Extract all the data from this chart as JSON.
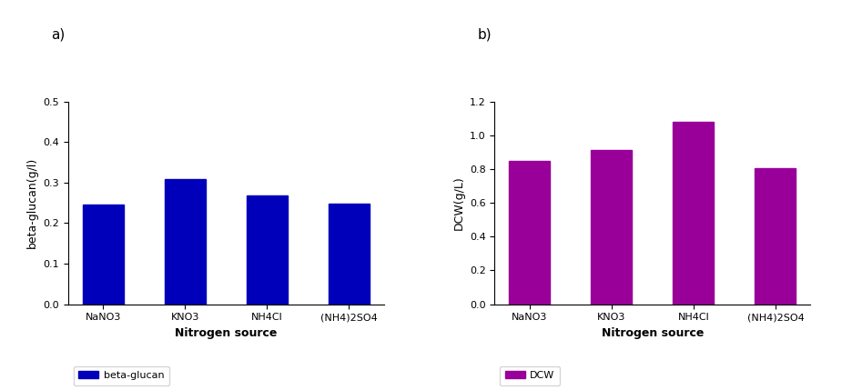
{
  "categories": [
    "NaNO3",
    "KNO3",
    "NH4Cl",
    "(NH4)2SO4"
  ],
  "beta_glucan_values": [
    0.245,
    0.308,
    0.268,
    0.248
  ],
  "dcw_values": [
    0.85,
    0.91,
    1.08,
    0.805
  ],
  "beta_glucan_color": "#0000BB",
  "dcw_color": "#990099",
  "beta_glucan_ylabel": "beta-glucan(g/l)",
  "dcw_ylabel": "DCW(g/L)",
  "xlabel": "Nitrogen source",
  "beta_glucan_ylim": [
    0,
    0.5
  ],
  "dcw_ylim": [
    0,
    1.2
  ],
  "beta_glucan_yticks": [
    0.0,
    0.1,
    0.2,
    0.3,
    0.4,
    0.5
  ],
  "dcw_yticks": [
    0.0,
    0.2,
    0.4,
    0.6,
    0.8,
    1.0,
    1.2
  ],
  "legend_label_a": "beta-glucan",
  "legend_label_b": "DCW",
  "panel_a_label": "a)",
  "panel_b_label": "b)",
  "bar_width": 0.5,
  "background_color": "#ffffff",
  "font_size_ticks": 8,
  "font_size_labels": 9,
  "font_size_panel": 11,
  "font_size_legend": 8
}
